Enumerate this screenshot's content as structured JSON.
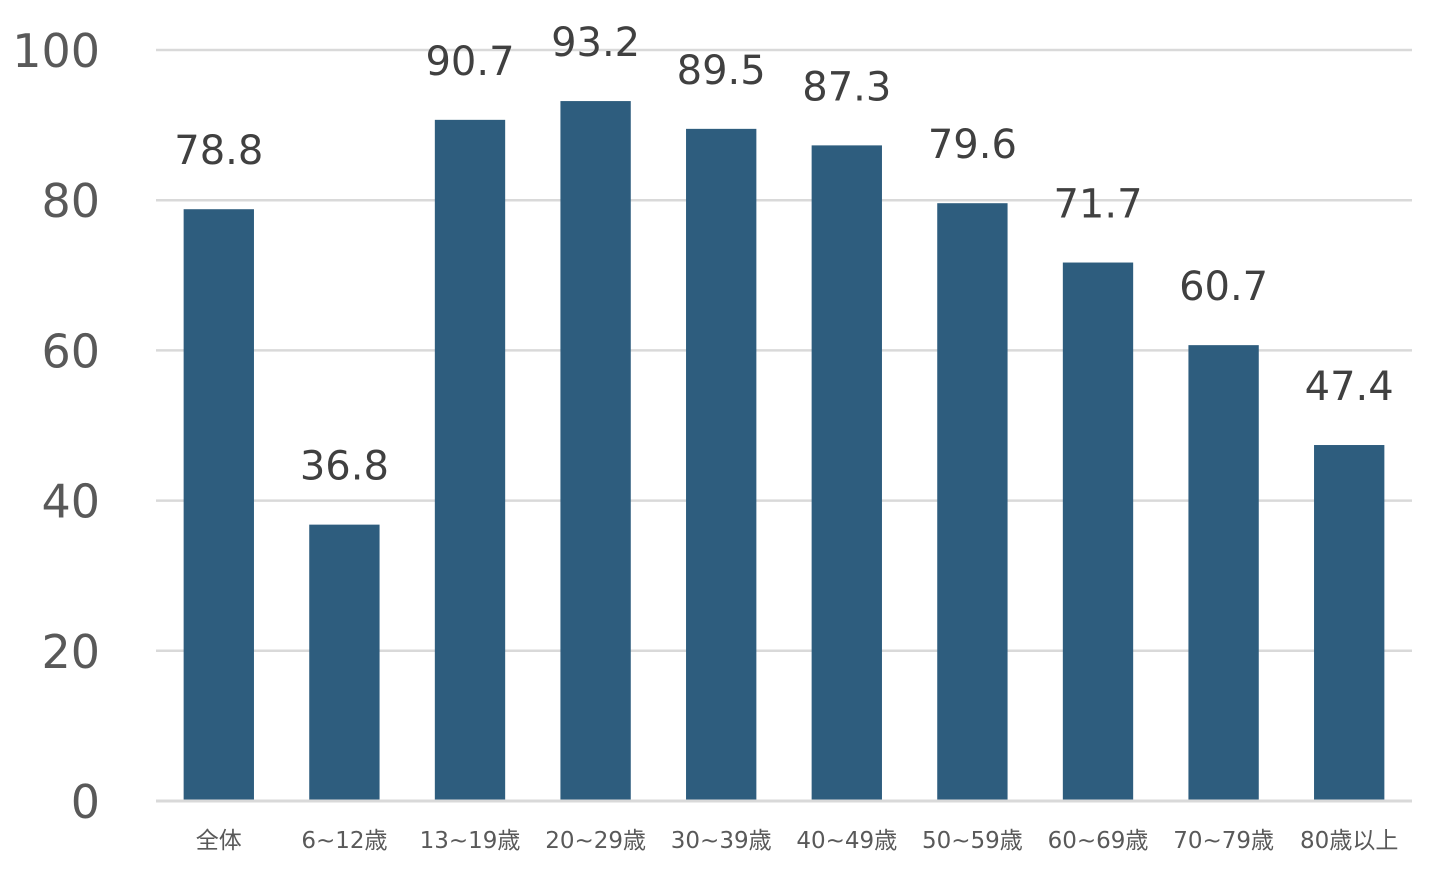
{
  "chart_data": {
    "type": "bar",
    "categories": [
      "全体",
      "6~12歳",
      "13~19歳",
      "20~29歳",
      "30~39歳",
      "40~49歳",
      "50~59歳",
      "60~69歳",
      "70~79歳",
      "80歳以上"
    ],
    "values": [
      78.8,
      36.8,
      90.7,
      93.2,
      89.5,
      87.3,
      79.6,
      71.7,
      60.7,
      47.4
    ],
    "value_labels": [
      "78.8",
      "36.8",
      "90.7",
      "93.2",
      "89.5",
      "87.3",
      "79.6",
      "71.7",
      "60.7",
      "47.4"
    ],
    "title": "",
    "xlabel": "",
    "ylabel": "",
    "ylim": [
      0,
      100
    ],
    "yticks": [
      "0",
      "20",
      "40",
      "60",
      "80",
      "100"
    ],
    "grid": true,
    "legend": "none",
    "bar_color": "#2e5d7e",
    "grid_color": "#d9d9d9"
  }
}
